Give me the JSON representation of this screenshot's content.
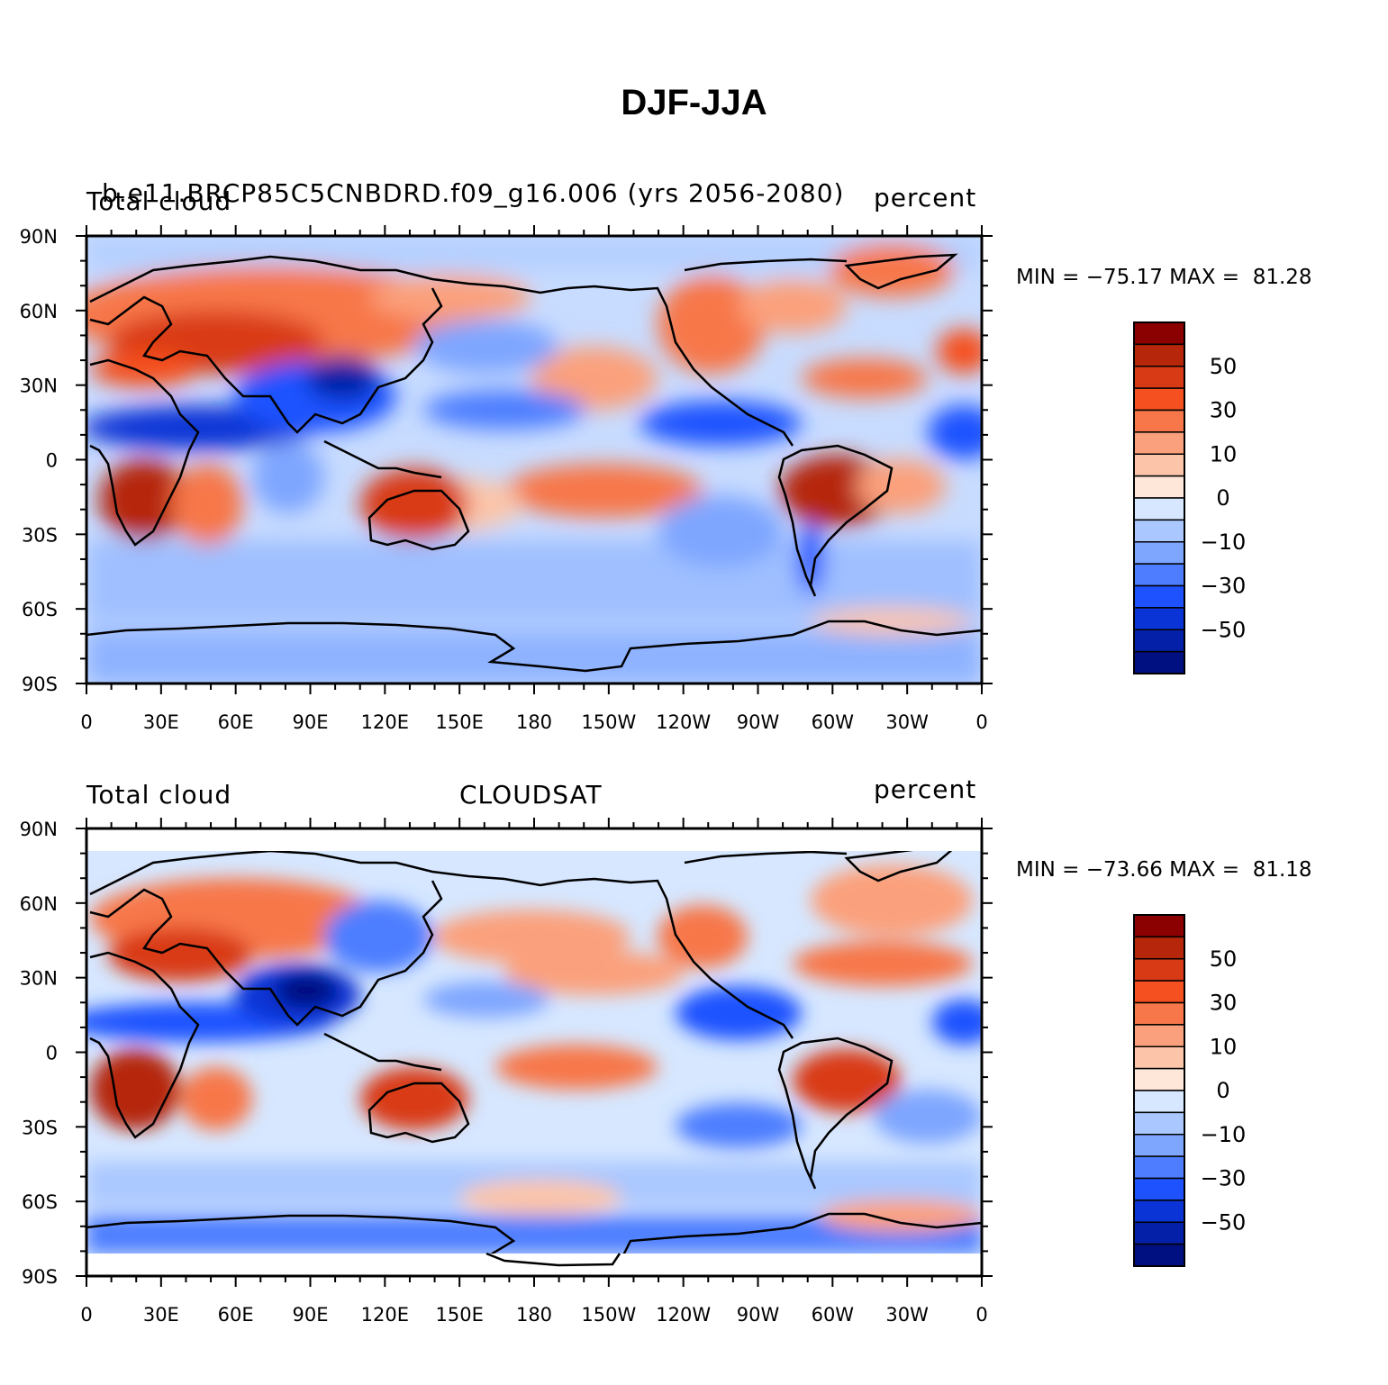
{
  "title": "DJF-JJA",
  "panels": [
    {
      "left_label": "Total cloud",
      "center_label": "b.e11.BRCP85C5CNBDRD.f09_g16.006 (yrs 2056-2080)",
      "right_label": "percent",
      "stats": "MIN = −75.17 MAX =  81.28"
    },
    {
      "left_label": "Total cloud",
      "center_label": "CLOUDSAT",
      "right_label": "percent",
      "stats": "MIN = −73.66 MAX =  81.18"
    }
  ],
  "axes": {
    "x_ticks": [
      "0",
      "30E",
      "60E",
      "90E",
      "120E",
      "150E",
      "180",
      "150W",
      "120W",
      "90W",
      "60W",
      "30W",
      "0"
    ],
    "y_ticks": [
      "90N",
      "60N",
      "30N",
      "0",
      "30S",
      "60S",
      "90S"
    ]
  },
  "colorbar": {
    "labels": [
      "50",
      "30",
      "10",
      "0",
      "−10",
      "−30",
      "−50"
    ],
    "colors": [
      "#8b0000",
      "#b5260a",
      "#d93a16",
      "#f5501f",
      "#f7774a",
      "#fba07c",
      "#fcc5a9",
      "#fee6d8",
      "#d6e7ff",
      "#aac8ff",
      "#7ea6ff",
      "#4e7eff",
      "#1f52ff",
      "#0a34d6",
      "#0520a8",
      "#001080"
    ]
  },
  "chart_data": [
    {
      "type": "heatmap",
      "panel": "model",
      "variable": "Total cloud",
      "units": "percent",
      "min": -75.17,
      "max": 81.28,
      "xlim": [
        0,
        360
      ],
      "ylim": [
        -90,
        90
      ],
      "contour_levels": [
        -70,
        -60,
        -50,
        -40,
        -30,
        -20,
        -10,
        -5,
        0,
        5,
        10,
        20,
        30,
        40,
        50,
        60,
        70
      ]
    },
    {
      "type": "heatmap",
      "panel": "observation",
      "variable": "Total cloud",
      "units": "percent",
      "min": -73.66,
      "max": 81.18,
      "xlim": [
        0,
        360
      ],
      "ylim": [
        -90,
        90
      ],
      "contour_levels": [
        -70,
        -60,
        -50,
        -40,
        -30,
        -20,
        -10,
        -5,
        0,
        5,
        10,
        20,
        30,
        40,
        50,
        60,
        70
      ]
    }
  ]
}
